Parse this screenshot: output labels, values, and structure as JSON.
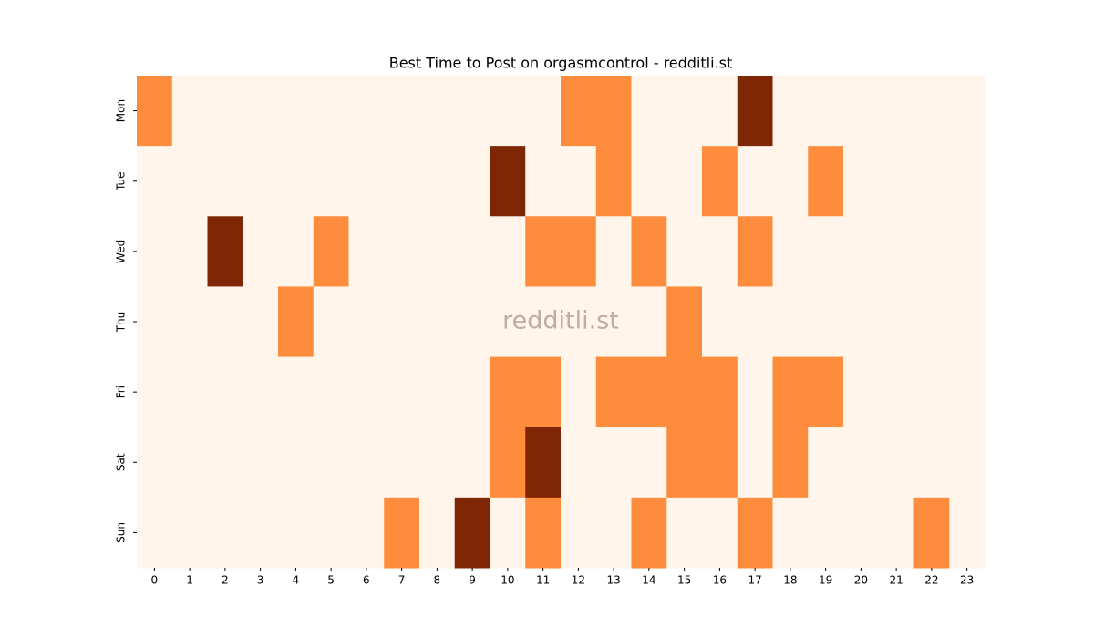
{
  "chart_data": {
    "type": "heatmap",
    "title": "Best Time to Post on orgasmcontrol - redditli.st",
    "watermark": "redditli.st",
    "x": [
      0,
      1,
      2,
      3,
      4,
      5,
      6,
      7,
      8,
      9,
      10,
      11,
      12,
      13,
      14,
      15,
      16,
      17,
      18,
      19,
      20,
      21,
      22,
      23
    ],
    "categories": [
      "Mon",
      "Tue",
      "Wed",
      "Thu",
      "Fri",
      "Sat",
      "Sun"
    ],
    "colors": [
      "#fff5eb",
      "#fd8d3c",
      "#7f2704"
    ],
    "values": [
      [
        1,
        0,
        0,
        0,
        0,
        0,
        0,
        0,
        0,
        0,
        0,
        0,
        1,
        1,
        0,
        0,
        0,
        2,
        0,
        0,
        0,
        0,
        0,
        0
      ],
      [
        0,
        0,
        0,
        0,
        0,
        0,
        0,
        0,
        0,
        0,
        2,
        0,
        0,
        1,
        0,
        0,
        1,
        0,
        0,
        1,
        0,
        0,
        0,
        0
      ],
      [
        0,
        0,
        2,
        0,
        0,
        1,
        0,
        0,
        0,
        0,
        0,
        1,
        1,
        0,
        1,
        0,
        0,
        1,
        0,
        0,
        0,
        0,
        0,
        0
      ],
      [
        0,
        0,
        0,
        0,
        1,
        0,
        0,
        0,
        0,
        0,
        0,
        0,
        0,
        0,
        0,
        1,
        0,
        0,
        0,
        0,
        0,
        0,
        0,
        0
      ],
      [
        0,
        0,
        0,
        0,
        0,
        0,
        0,
        0,
        0,
        0,
        1,
        1,
        0,
        1,
        1,
        1,
        1,
        0,
        1,
        1,
        0,
        0,
        0,
        0
      ],
      [
        0,
        0,
        0,
        0,
        0,
        0,
        0,
        0,
        0,
        0,
        1,
        2,
        0,
        0,
        0,
        1,
        1,
        0,
        1,
        0,
        0,
        0,
        0,
        0
      ],
      [
        0,
        0,
        0,
        0,
        0,
        0,
        0,
        1,
        0,
        2,
        0,
        1,
        0,
        0,
        1,
        0,
        0,
        1,
        0,
        0,
        0,
        0,
        1,
        0
      ]
    ]
  }
}
